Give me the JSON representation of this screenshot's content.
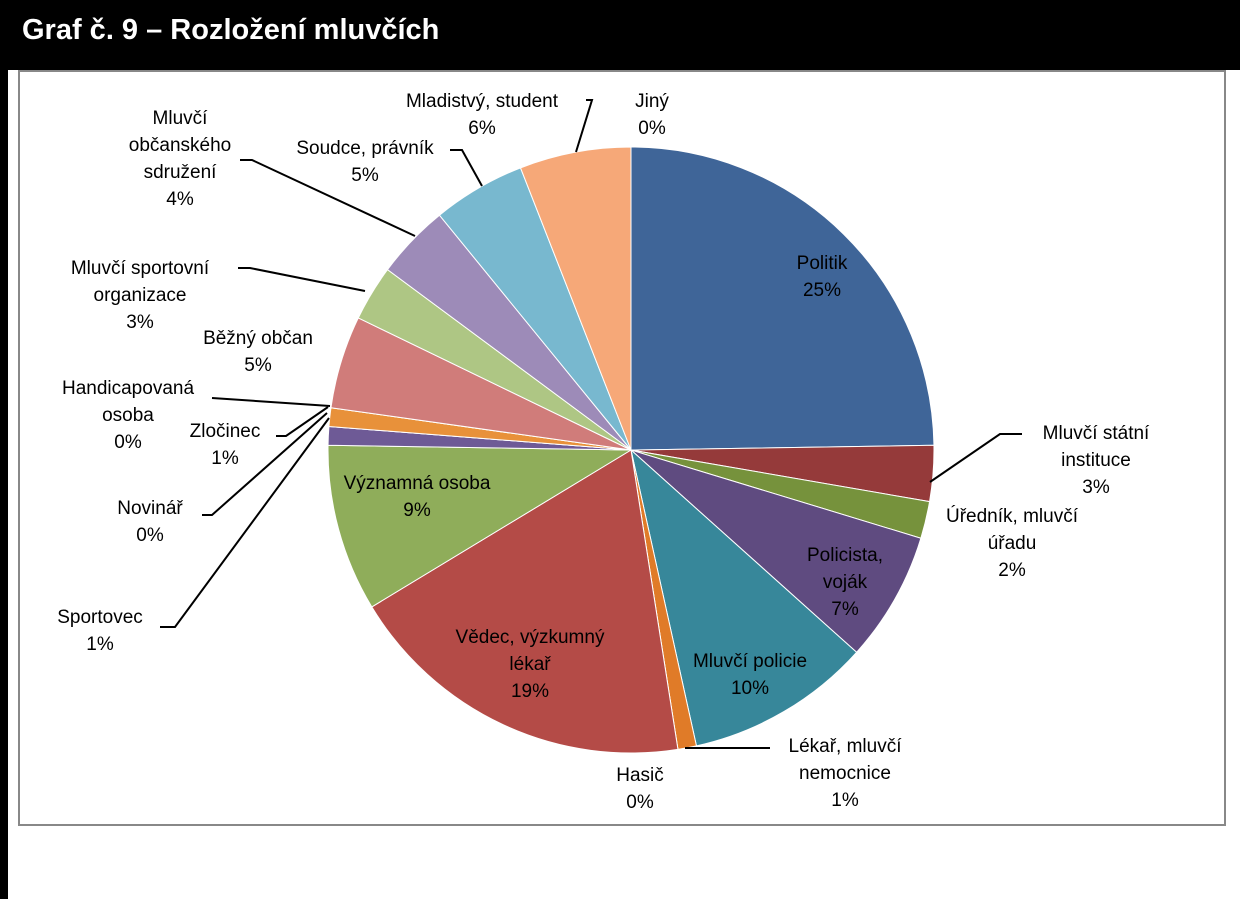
{
  "chart_data": {
    "type": "pie",
    "title": "Graf č. 9 – Rozložení mluvčích",
    "categories": [
      "Politik",
      "Mluvčí státní instituce",
      "Úředník, mluvčí úřadu",
      "Policista, voják",
      "Mluvčí policie",
      "Lékař, mluvčí nemocnice",
      "Hasič",
      "Vědec, výzkumný lékař",
      "Významná osoba",
      "Sportovec",
      "Novinář",
      "Zločinec",
      "Handicapovaná osoba",
      "Běžný občan",
      "Mluvčí sportovní organizace",
      "Mluvčí občanského sdružení",
      "Soudce, právník",
      "Mladistvý, student",
      "Jiný"
    ],
    "values": [
      25,
      3,
      2,
      7,
      10,
      1,
      0,
      19,
      9,
      1,
      0,
      1,
      0,
      5,
      3,
      4,
      5,
      6,
      0
    ],
    "value_labels": [
      "25%",
      "3%",
      "2%",
      "7%",
      "10%",
      "1%",
      "0%",
      "19%",
      "9%",
      "1%",
      "0%",
      "1%",
      "0%",
      "5%",
      "3%",
      "4%",
      "5%",
      "6%",
      "0%"
    ],
    "colors": [
      "#3f6598",
      "#953a3a",
      "#76923c",
      "#5f4b80",
      "#37879a",
      "#e07b28",
      "#c0504d",
      "#b44b47",
      "#8fad5a",
      "#6e5a96",
      "#4bacc6",
      "#e8913a",
      "#8aa0c8",
      "#d07c7a",
      "#aec684",
      "#9d8bb8",
      "#78b8cf",
      "#f6a878",
      "#4f81bd"
    ]
  }
}
